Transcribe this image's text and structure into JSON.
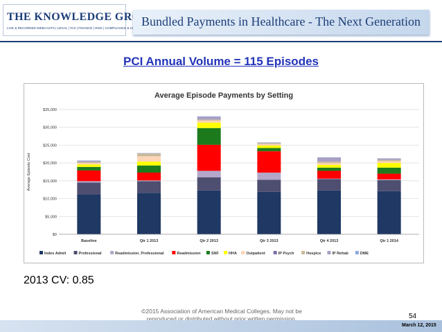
{
  "header": {
    "logo_title": "THE KNOWLEDGE GROUP",
    "logo_subtitle": "LIVE & RECORDED WEBCASTS | LEGAL | TAX | FINANCE | RISK | COMPLIANCE & HR",
    "banner_title": "Bundled Payments in Healthcare - The Next Generation"
  },
  "slide_title": "PCI Annual Volume = 115 Episodes",
  "cv_text": "2013 CV: 0.85",
  "copyright": [
    "©2015 Association of American Medical Colleges. May not be",
    "reproduced or distributed without prior written permission."
  ],
  "page_number": "54",
  "date": "March 12, 2015",
  "chart_data": {
    "type": "bar",
    "stacked": true,
    "title": "Average Episode Payments by Setting",
    "ylabel": "Average Episode Cost",
    "xlabel": "",
    "ylim": [
      0,
      35000
    ],
    "yticks": [
      0,
      5000,
      10000,
      15000,
      20000,
      25000,
      30000,
      35000
    ],
    "ytick_labels": [
      "$0",
      "$5,000",
      "$10,000",
      "$15,000",
      "$20,000",
      "$25,000",
      "$30,000",
      "$35,000"
    ],
    "grid": true,
    "legend_position": "bottom",
    "categories": [
      "Baseline",
      "Qtr 1 2013",
      "Qtr 2 2013",
      "Qtr 3 2013",
      "Qtr 4 2013",
      "Qtr 1 2014"
    ],
    "series": [
      {
        "name": "Index Admit",
        "color": "#1f3864",
        "values": [
          11200,
          11600,
          12300,
          11900,
          12300,
          12100
        ]
      },
      {
        "name": "Professional",
        "color": "#4e4e70",
        "values": [
          3300,
          3300,
          3700,
          3400,
          3200,
          3100
        ]
      },
      {
        "name": "Readmission_Professional",
        "color": "#b4a7c9",
        "values": [
          400,
          200,
          1800,
          2000,
          100,
          200
        ]
      },
      {
        "name": "Readmission",
        "color": "#ff0000",
        "values": [
          3000,
          2200,
          7300,
          6000,
          2200,
          1600
        ]
      },
      {
        "name": "SNF",
        "color": "#1c7a1c",
        "values": [
          1000,
          2000,
          4700,
          900,
          900,
          1700
        ]
      },
      {
        "name": "HHA",
        "color": "#ffff00",
        "values": [
          700,
          1100,
          1500,
          700,
          800,
          1300
        ]
      },
      {
        "name": "Outpatient",
        "color": "#fbd5b5",
        "values": [
          400,
          1500,
          600,
          400,
          500,
          500
        ]
      },
      {
        "name": "IP Psych",
        "color": "#7f6fa8",
        "values": [
          0,
          0,
          0,
          0,
          0,
          0
        ]
      },
      {
        "name": "Hospice",
        "color": "#c9b99a",
        "values": [
          300,
          800,
          300,
          300,
          400,
          400
        ]
      },
      {
        "name": "IP Rehab",
        "color": "#a89fc2",
        "values": [
          300,
          0,
          800,
          100,
          1100,
          300
        ]
      },
      {
        "name": "DME",
        "color": "#8ea9db",
        "values": [
          100,
          100,
          100,
          100,
          100,
          100
        ]
      }
    ]
  }
}
